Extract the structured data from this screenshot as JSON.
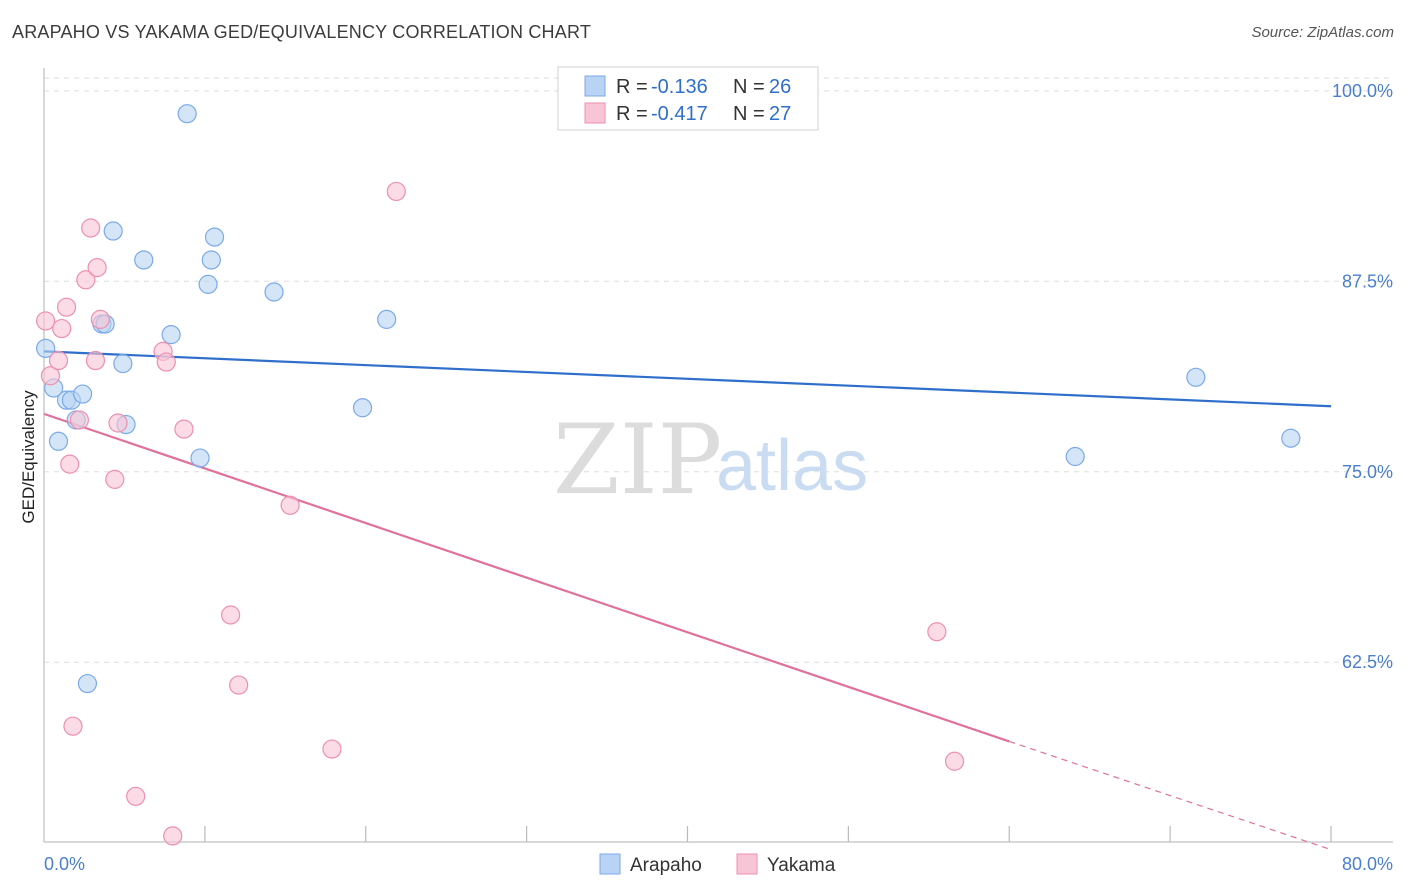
{
  "title": "ARAPAHO VS YAKAMA GED/EQUIVALENCY CORRELATION CHART",
  "source": "Source: ZipAtlas.com",
  "colors": {
    "arapaho": "#7baae8",
    "arapaho_fill": "#b8d3f3",
    "yakama": "#ee8fb0",
    "yakama_fill": "#f8c5d6",
    "arapaho_line": "#2f6fcb",
    "yakama_line": "#e0719b",
    "tick_label": "#4a7fcf",
    "grid": "#dddddd"
  },
  "legend": {
    "rows": [
      {
        "r_label": "R = ",
        "r_value": "-0.136",
        "n_label": "N = ",
        "n_value": "26",
        "series": "arapaho"
      },
      {
        "r_label": "R = ",
        "r_value": "-0.417",
        "n_label": "N = ",
        "n_value": "27",
        "series": "yakama"
      }
    ]
  },
  "watermark": {
    "zip": "ZIP",
    "atlas": "atlas"
  },
  "chart_data": {
    "type": "scatter",
    "title": "ARAPAHO VS YAKAMA GED/EQUIVALENCY CORRELATION CHART",
    "xlabel": "",
    "ylabel": "GED/Equivalency",
    "xlim": [
      0,
      80
    ],
    "ylim": [
      50.7,
      101.5
    ],
    "x_tick_labels": [
      "0.0%",
      "80.0%"
    ],
    "y_ticks": [
      62.5,
      75.0,
      87.5,
      100.0
    ],
    "y_tick_labels": [
      "62.5%",
      "75.0%",
      "87.5%",
      "100.0%"
    ],
    "grid": true,
    "legend_position": "top-center",
    "series": [
      {
        "name": "Arapaho",
        "color": "#7baae8",
        "points": [
          [
            0.1,
            83.1
          ],
          [
            0.6,
            80.5
          ],
          [
            0.9,
            77.0
          ],
          [
            1.4,
            79.7
          ],
          [
            1.7,
            79.7
          ],
          [
            2.0,
            78.4
          ],
          [
            2.4,
            80.1
          ],
          [
            2.7,
            61.1
          ],
          [
            3.6,
            84.7
          ],
          [
            3.8,
            84.7
          ],
          [
            4.3,
            90.8
          ],
          [
            4.9,
            82.1
          ],
          [
            5.1,
            78.1
          ],
          [
            6.2,
            88.9
          ],
          [
            7.9,
            84.0
          ],
          [
            8.9,
            98.5
          ],
          [
            9.7,
            75.9
          ],
          [
            10.2,
            87.3
          ],
          [
            10.4,
            88.9
          ],
          [
            10.6,
            90.4
          ],
          [
            14.3,
            86.8
          ],
          [
            19.8,
            79.2
          ],
          [
            21.3,
            85.0
          ],
          [
            64.1,
            76.0
          ],
          [
            71.6,
            81.2
          ],
          [
            77.5,
            77.2
          ]
        ],
        "trend": {
          "x": [
            0,
            80
          ],
          "y": [
            82.9,
            79.3
          ]
        }
      },
      {
        "name": "Yakama",
        "color": "#ee8fb0",
        "points": [
          [
            0.1,
            84.9
          ],
          [
            0.4,
            81.3
          ],
          [
            0.9,
            82.3
          ],
          [
            1.1,
            84.4
          ],
          [
            1.4,
            85.8
          ],
          [
            1.6,
            75.5
          ],
          [
            1.8,
            58.3
          ],
          [
            2.2,
            78.4
          ],
          [
            2.6,
            87.6
          ],
          [
            2.9,
            91.0
          ],
          [
            3.2,
            82.3
          ],
          [
            3.3,
            88.4
          ],
          [
            3.5,
            85.0
          ],
          [
            4.4,
            74.5
          ],
          [
            4.6,
            78.2
          ],
          [
            5.7,
            53.7
          ],
          [
            7.4,
            82.9
          ],
          [
            7.6,
            82.2
          ],
          [
            8.0,
            51.1
          ],
          [
            8.7,
            77.8
          ],
          [
            11.6,
            65.6
          ],
          [
            12.1,
            61.0
          ],
          [
            15.3,
            72.8
          ],
          [
            17.9,
            56.8
          ],
          [
            21.9,
            93.4
          ],
          [
            55.5,
            64.5
          ],
          [
            56.6,
            56.0
          ]
        ],
        "trend": {
          "x": [
            0,
            60
          ],
          "y": [
            78.8,
            57.3
          ],
          "dashed_to": [
            80,
            50.2
          ]
        }
      }
    ]
  },
  "bottom_legend": [
    {
      "label": "Arapaho",
      "series": "arapaho"
    },
    {
      "label": "Yakama",
      "series": "yakama"
    }
  ]
}
